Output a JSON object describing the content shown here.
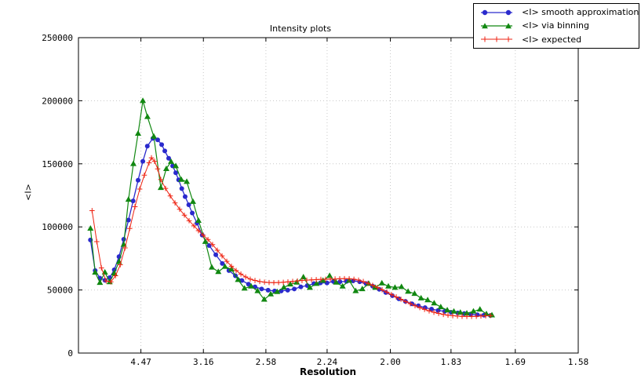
{
  "figure": {
    "background": "#ffffff",
    "frame_color": "#000000",
    "grid_color": "#c8c8c8"
  },
  "chart_data": {
    "type": "line",
    "title": "Intensity plots",
    "xlabel": "Resolution",
    "ylabel": "<I>",
    "x_axis_note": "x coordinate is 1/d^2; tick labels show resolution d in Angstrom",
    "xlim": [
      0,
      0.40058
    ],
    "ylim": [
      0,
      250000
    ],
    "grid": true,
    "legend_position": "top-right",
    "x_ticks": [
      {
        "value": 0.05005,
        "label": "4.47"
      },
      {
        "value": 0.10014,
        "label": "3.16"
      },
      {
        "value": 0.15023,
        "label": "2.58"
      },
      {
        "value": 0.1993,
        "label": "2.24"
      },
      {
        "value": 0.25,
        "label": "2.00"
      },
      {
        "value": 0.29861,
        "label": "1.83"
      },
      {
        "value": 0.35013,
        "label": "1.69"
      },
      {
        "value": 0.40058,
        "label": "1.58"
      }
    ],
    "y_ticks": [
      {
        "value": 0,
        "label": "0"
      },
      {
        "value": 50000,
        "label": "50000"
      },
      {
        "value": 100000,
        "label": "100000"
      },
      {
        "value": 150000,
        "label": "150000"
      },
      {
        "value": 200000,
        "label": "200000"
      },
      {
        "value": 250000,
        "label": "250000"
      }
    ],
    "series": [
      {
        "name": "<I> smooth approximation",
        "color": "#2a2acd",
        "marker": "circle",
        "line_width": 1.3,
        "x": [
          0.0096,
          0.0134,
          0.0172,
          0.0212,
          0.025,
          0.0287,
          0.0325,
          0.0363,
          0.0401,
          0.0438,
          0.0478,
          0.0516,
          0.0552,
          0.0597,
          0.0635,
          0.0667,
          0.0692,
          0.0723,
          0.0755,
          0.078,
          0.0803,
          0.0828,
          0.0855,
          0.0884,
          0.0912,
          0.095,
          0.0992,
          0.1048,
          0.1101,
          0.1153,
          0.1206,
          0.1258,
          0.131,
          0.1363,
          0.1415,
          0.1468,
          0.152,
          0.1572,
          0.1625,
          0.1677,
          0.173,
          0.1782,
          0.1834,
          0.1887,
          0.1939,
          0.1992,
          0.2044,
          0.2096,
          0.2149,
          0.2201,
          0.2254,
          0.2306,
          0.2358,
          0.2411,
          0.2463,
          0.2516,
          0.2568,
          0.2621,
          0.2673,
          0.2725,
          0.2778,
          0.283,
          0.2883,
          0.2935,
          0.2987,
          0.304,
          0.3092,
          0.3145,
          0.3197,
          0.325,
          0.3302
        ],
        "y": [
          89600,
          65400,
          59400,
          57700,
          59800,
          66000,
          76400,
          90200,
          105400,
          120600,
          137000,
          152000,
          164000,
          170200,
          169000,
          165200,
          160200,
          154400,
          148300,
          142900,
          137300,
          130400,
          124000,
          117500,
          111000,
          103000,
          93500,
          85200,
          77900,
          71000,
          65400,
          61250,
          57500,
          54600,
          52500,
          50800,
          49800,
          49200,
          49200,
          49800,
          50800,
          52500,
          53500,
          55000,
          55600,
          55600,
          56700,
          56500,
          56800,
          57200,
          56500,
          55000,
          53000,
          50500,
          48000,
          45500,
          43000,
          41000,
          39000,
          37500,
          36000,
          34800,
          33800,
          33000,
          32300,
          31800,
          31300,
          30800,
          30300,
          30000,
          29800
        ]
      },
      {
        "name": "<I> via binning",
        "color": "#118811",
        "marker": "triangle",
        "line_width": 1.2,
        "x": [
          0.0096,
          0.0134,
          0.0172,
          0.0212,
          0.025,
          0.0287,
          0.0325,
          0.0363,
          0.0401,
          0.044,
          0.0478,
          0.0516,
          0.0553,
          0.0604,
          0.066,
          0.0704,
          0.0742,
          0.078,
          0.0824,
          0.0868,
          0.0918,
          0.0962,
          0.1017,
          0.1069,
          0.1121,
          0.1174,
          0.1226,
          0.1279,
          0.1331,
          0.1384,
          0.1436,
          0.1489,
          0.1541,
          0.1593,
          0.1646,
          0.1698,
          0.175,
          0.1803,
          0.1855,
          0.1908,
          0.196,
          0.2013,
          0.2065,
          0.2117,
          0.217,
          0.2222,
          0.2275,
          0.2327,
          0.2379,
          0.2432,
          0.2484,
          0.2537,
          0.2589,
          0.2642,
          0.2694,
          0.2746,
          0.2799,
          0.2851,
          0.2904,
          0.2956,
          0.3009,
          0.3061,
          0.3113,
          0.3166,
          0.3218,
          0.327,
          0.3314
        ],
        "y": [
          98750,
          63900,
          55800,
          64000,
          56300,
          63300,
          72300,
          86000,
          121700,
          150000,
          174000,
          200000,
          187300,
          171700,
          131000,
          146000,
          151700,
          148300,
          137500,
          135800,
          120000,
          105000,
          88300,
          67900,
          64400,
          68500,
          66400,
          58100,
          51250,
          52900,
          49200,
          42500,
          46700,
          48500,
          52000,
          54500,
          56000,
          60200,
          51900,
          55000,
          57500,
          61250,
          56000,
          52900,
          57500,
          49200,
          50800,
          55000,
          51900,
          55400,
          52900,
          51900,
          52500,
          48750,
          47100,
          43500,
          42000,
          39500,
          36500,
          34000,
          33000,
          32100,
          31500,
          33100,
          34600,
          31000,
          30000
        ]
      },
      {
        "name": "<I> expected",
        "color": "#ee2211",
        "marker": "plus",
        "line_width": 1.0,
        "x": [
          0.0109,
          0.0147,
          0.0184,
          0.0222,
          0.026,
          0.0297,
          0.0335,
          0.0373,
          0.0411,
          0.0453,
          0.0491,
          0.0528,
          0.0566,
          0.0585,
          0.061,
          0.0635,
          0.066,
          0.0698,
          0.0736,
          0.0774,
          0.0811,
          0.0849,
          0.0887,
          0.0925,
          0.0962,
          0.1,
          0.1038,
          0.1075,
          0.1113,
          0.1151,
          0.1189,
          0.1226,
          0.1264,
          0.1302,
          0.134,
          0.1377,
          0.1415,
          0.1453,
          0.1491,
          0.1528,
          0.1566,
          0.1604,
          0.1642,
          0.1679,
          0.1717,
          0.1755,
          0.1792,
          0.183,
          0.1868,
          0.1906,
          0.1943,
          0.1981,
          0.2019,
          0.2057,
          0.2094,
          0.2132,
          0.217,
          0.2208,
          0.2245,
          0.2283,
          0.2321,
          0.2358,
          0.2396,
          0.2434,
          0.2472,
          0.2509,
          0.2547,
          0.2585,
          0.2623,
          0.266,
          0.2698,
          0.2736,
          0.2774,
          0.2811,
          0.2849,
          0.2887,
          0.2925,
          0.2962,
          0.3,
          0.3038,
          0.3075,
          0.3113,
          0.3151,
          0.3189,
          0.3226,
          0.3264,
          0.3302
        ],
        "y": [
          112900,
          88300,
          67500,
          57100,
          56400,
          61250,
          70000,
          83300,
          98750,
          116000,
          130000,
          141000,
          150800,
          154800,
          152000,
          146000,
          137500,
          130500,
          124500,
          119000,
          114000,
          109300,
          104900,
          100800,
          97000,
          93400,
          90000,
          86000,
          81500,
          77000,
          72700,
          68800,
          65400,
          62600,
          60300,
          58600,
          57500,
          56700,
          56200,
          55900,
          55800,
          55900,
          56100,
          56400,
          56800,
          57200,
          57500,
          57800,
          58000,
          58200,
          58400,
          58500,
          58600,
          58700,
          58900,
          59000,
          58900,
          58500,
          57800,
          56700,
          55300,
          53700,
          52000,
          50200,
          48300,
          46400,
          44500,
          42600,
          40800,
          39100,
          37500,
          36000,
          34600,
          33400,
          32300,
          31400,
          30600,
          30000,
          29600,
          29300,
          29100,
          29000,
          29000,
          29100,
          29300,
          29500,
          29700
        ]
      }
    ]
  }
}
